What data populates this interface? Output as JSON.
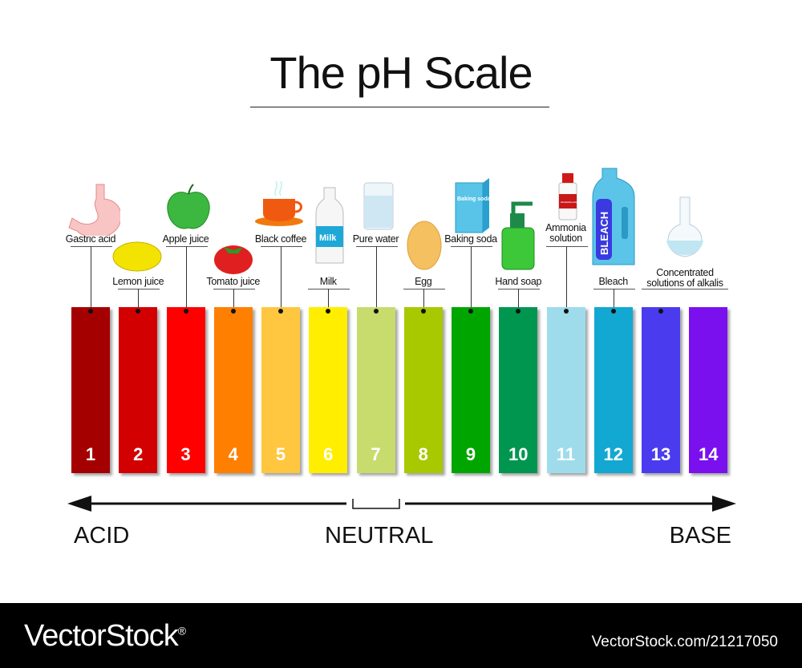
{
  "title": "The pH Scale",
  "scale": [
    {
      "ph": "1",
      "color": "#a50000",
      "label": "Gastric acid",
      "row": "high",
      "icon": "stomach-icon"
    },
    {
      "ph": "2",
      "color": "#d20000",
      "label": "Lemon juice",
      "row": "low",
      "icon": "lemon-icon"
    },
    {
      "ph": "3",
      "color": "#ff0000",
      "label": "Apple juice",
      "row": "high",
      "icon": "apple-icon"
    },
    {
      "ph": "4",
      "color": "#ff7f00",
      "label": "Tomato juice",
      "row": "low",
      "icon": "tomato-icon"
    },
    {
      "ph": "5",
      "color": "#ffc640",
      "label": "Black coffee",
      "row": "high",
      "icon": "coffee-cup-icon"
    },
    {
      "ph": "6",
      "color": "#ffee00",
      "label": "Milk",
      "row": "low",
      "icon": "milk-bottle-icon",
      "icon_text": "Milk"
    },
    {
      "ph": "7",
      "color": "#c8dc6e",
      "label": "Pure water",
      "row": "high",
      "icon": "water-glass-icon"
    },
    {
      "ph": "8",
      "color": "#a8c800",
      "label": "Egg",
      "row": "low",
      "icon": "egg-icon"
    },
    {
      "ph": "9",
      "color": "#00a500",
      "label": "Baking soda",
      "row": "high",
      "icon": "baking-soda-box-icon",
      "icon_text": "Baking soda"
    },
    {
      "ph": "10",
      "color": "#009650",
      "label": "Hand soap",
      "row": "low",
      "icon": "soap-dispenser-icon"
    },
    {
      "ph": "11",
      "color": "#9edcec",
      "label": "Ammonia solution",
      "row": "high",
      "icon": "ammonia-bottle-icon",
      "icon_text": "Ammonia solution"
    },
    {
      "ph": "12",
      "color": "#12a8d2",
      "label": "Bleach",
      "row": "low",
      "icon": "bleach-bottle-icon",
      "icon_text": "BLEACH"
    },
    {
      "ph": "13",
      "color": "#4a3cee",
      "label": "Concentrated solutions of alkalis",
      "row": "mid",
      "icon": "flask-icon"
    },
    {
      "ph": "14",
      "color": "#7a10ee",
      "label": "",
      "row": "none",
      "icon": ""
    }
  ],
  "axis": {
    "left": "ACID",
    "center": "NEUTRAL",
    "right": "BASE"
  },
  "footer": {
    "brand": "VectorStock",
    "brand_mark": "®",
    "ref": "VectorStock.com/21217050"
  }
}
